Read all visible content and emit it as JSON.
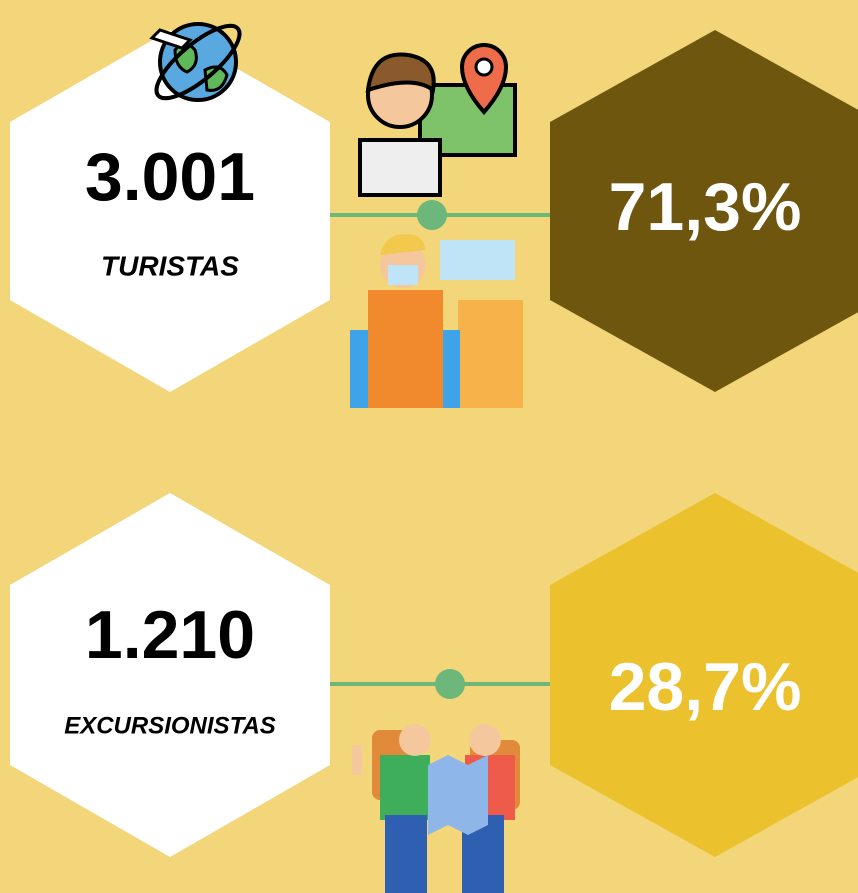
{
  "items": [
    {
      "count": "3.001",
      "label": "TURISTAS",
      "percent": "71,3%"
    },
    {
      "count": "1.210",
      "label": "EXCURSIONISTAS",
      "percent": "28,7%"
    }
  ]
}
